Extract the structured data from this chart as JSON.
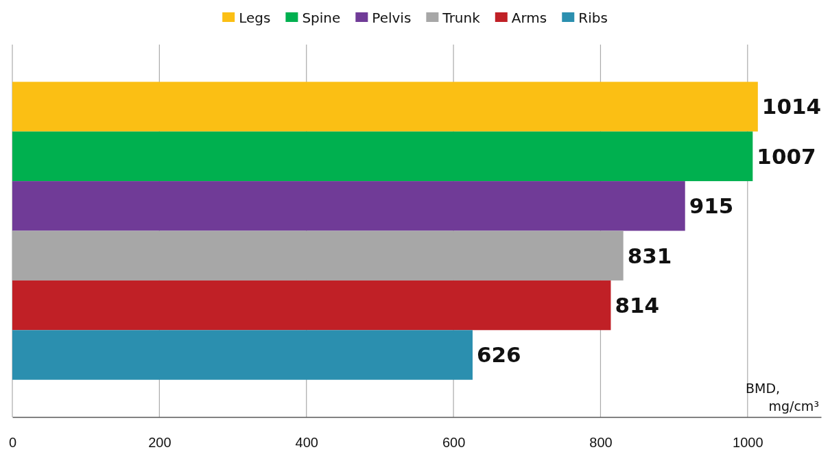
{
  "chart_data": {
    "type": "bar",
    "orientation": "horizontal",
    "stacked": true,
    "categories": [
      null,
      null,
      null,
      null,
      null,
      null
    ],
    "series": [
      {
        "name": "Legs",
        "color": "#fbbf14",
        "values": [
          1014,
          null,
          null,
          null,
          null,
          null
        ]
      },
      {
        "name": "Spine",
        "color": "#00b04f",
        "values": [
          null,
          1007,
          null,
          null,
          null,
          null
        ]
      },
      {
        "name": "Pelvis",
        "color": "#703b97",
        "values": [
          null,
          null,
          915,
          null,
          null,
          null
        ]
      },
      {
        "name": "Trunk",
        "color": "#a7a7a7",
        "values": [
          null,
          null,
          null,
          831,
          null,
          null
        ]
      },
      {
        "name": "Arms",
        "color": "#c02026",
        "values": [
          null,
          null,
          null,
          null,
          814,
          null
        ]
      },
      {
        "name": "Ribs",
        "color": "#2b8faf",
        "values": [
          null,
          null,
          null,
          null,
          null,
          626
        ]
      }
    ],
    "xlim": [
      0,
      1100
    ],
    "xticks": [
      0,
      200,
      400,
      600,
      800,
      1000
    ],
    "xlabel": "BMD, mg/cm³",
    "grid": "x",
    "legend": "top",
    "data_labels": true
  }
}
